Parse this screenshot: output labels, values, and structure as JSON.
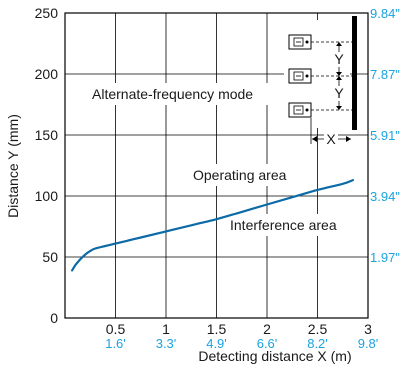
{
  "chart_data": {
    "type": "line",
    "title": "",
    "xlabel": "Detecting distance X (m)",
    "ylabel": "Distance Y (mm)",
    "xlim": [
      0,
      3
    ],
    "ylim": [
      0,
      250
    ],
    "x_ticks": [
      "0.5",
      "1",
      "1.5",
      "2",
      "2.5",
      "3"
    ],
    "x_ticks_secondary": [
      "1.6'",
      "3.3'",
      "4.9'",
      "6.6'",
      "8.2'",
      "9.8'"
    ],
    "y_ticks": [
      "0",
      "50",
      "100",
      "150",
      "200",
      "250"
    ],
    "y_ticks_secondary": [
      "1.97\"",
      "3.94\"",
      "5.91\"",
      "7.87\"",
      "9.84\""
    ],
    "grid": true,
    "series": [
      {
        "x": [
          0.07,
          0.1,
          0.15,
          0.2,
          0.25,
          0.3,
          0.4,
          0.5,
          0.75,
          1.0,
          1.25,
          1.5,
          1.75,
          2.0,
          2.25,
          2.5,
          2.75,
          2.85
        ],
        "y": [
          39,
          43,
          48,
          52,
          55,
          57,
          59,
          61,
          66,
          71,
          76,
          81,
          87,
          93,
          99,
          105,
          110,
          113
        ]
      }
    ],
    "annotations": {
      "mode": "Alternate-frequency mode",
      "operating": "Operating area",
      "interference": "Interference area"
    },
    "inset": {
      "x_label": "X",
      "y_label": "Y"
    },
    "colors": {
      "line": "#0c6aa6",
      "secondary_axis": "#1aa3e0",
      "axis": "#000000",
      "grid": "#000000"
    }
  }
}
